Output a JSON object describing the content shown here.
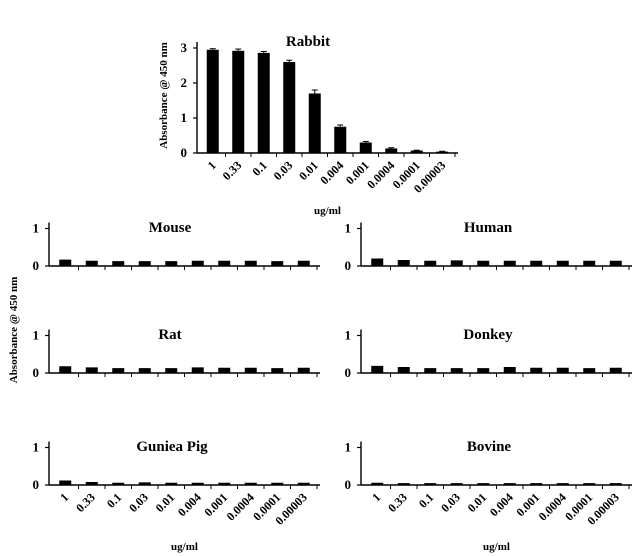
{
  "chart_data": [
    {
      "type": "bar",
      "title": "Rabbit",
      "ylabel": "Absorbance @ 450 nm",
      "xlabel": "ug/ml",
      "categories": [
        "1",
        "0.33",
        "0.1",
        "0.03",
        "0.01",
        "0.004",
        "0.001",
        "0.0004",
        "0.0001",
        "0.00003"
      ],
      "values": [
        2.95,
        2.92,
        2.86,
        2.6,
        1.7,
        0.75,
        0.3,
        0.13,
        0.07,
        0.04
      ],
      "errors": [
        0.03,
        0.05,
        0.04,
        0.05,
        0.1,
        0.05,
        0.03,
        0.02,
        0.01,
        0.01
      ],
      "ylim": [
        0,
        3
      ],
      "yticks": [
        "0",
        "1",
        "2",
        "3"
      ],
      "bar_color": "#000000"
    },
    {
      "type": "bar",
      "title": "Mouse",
      "categories": [
        "1",
        "0.33",
        "0.1",
        "0.03",
        "0.01",
        "0.004",
        "0.001",
        "0.0004",
        "0.0001",
        "0.00003"
      ],
      "values": [
        0.17,
        0.14,
        0.13,
        0.13,
        0.13,
        0.14,
        0.14,
        0.14,
        0.13,
        0.14
      ],
      "ylim": [
        0,
        1.2
      ],
      "yticks": [
        "0",
        "1"
      ],
      "bar_color": "#000000"
    },
    {
      "type": "bar",
      "title": "Human",
      "categories": [
        "1",
        "0.33",
        "0.1",
        "0.03",
        "0.01",
        "0.004",
        "0.001",
        "0.0004",
        "0.0001",
        "0.00003"
      ],
      "values": [
        0.2,
        0.16,
        0.14,
        0.15,
        0.14,
        0.14,
        0.14,
        0.14,
        0.14,
        0.14
      ],
      "ylim": [
        0,
        1.2
      ],
      "yticks": [
        "0",
        "1"
      ],
      "bar_color": "#000000"
    },
    {
      "type": "bar",
      "title": "Rat",
      "categories": [
        "1",
        "0.33",
        "0.1",
        "0.03",
        "0.01",
        "0.004",
        "0.001",
        "0.0004",
        "0.0001",
        "0.00003"
      ],
      "values": [
        0.18,
        0.15,
        0.13,
        0.13,
        0.13,
        0.15,
        0.14,
        0.14,
        0.13,
        0.14
      ],
      "ylim": [
        0,
        1.2
      ],
      "yticks": [
        "0",
        "1"
      ],
      "bar_color": "#000000"
    },
    {
      "type": "bar",
      "title": "Donkey",
      "categories": [
        "1",
        "0.33",
        "0.1",
        "0.03",
        "0.01",
        "0.004",
        "0.001",
        "0.0004",
        "0.0001",
        "0.00003"
      ],
      "values": [
        0.19,
        0.16,
        0.13,
        0.13,
        0.13,
        0.16,
        0.14,
        0.14,
        0.13,
        0.14
      ],
      "ylim": [
        0,
        1.2
      ],
      "yticks": [
        "0",
        "1"
      ],
      "bar_color": "#000000"
    },
    {
      "type": "bar",
      "title": "Guniea Pig",
      "xlabel": "ug/ml",
      "categories": [
        "1",
        "0.33",
        "0.1",
        "0.03",
        "0.01",
        "0.004",
        "0.001",
        "0.0004",
        "0.0001",
        "0.00003"
      ],
      "values": [
        0.12,
        0.08,
        0.06,
        0.07,
        0.06,
        0.06,
        0.06,
        0.06,
        0.06,
        0.06
      ],
      "ylim": [
        0,
        1.2
      ],
      "yticks": [
        "0",
        "1"
      ],
      "bar_color": "#000000"
    },
    {
      "type": "bar",
      "title": "Bovine",
      "xlabel": "ug/ml",
      "categories": [
        "1",
        "0.33",
        "0.1",
        "0.03",
        "0.01",
        "0.004",
        "0.001",
        "0.0004",
        "0.0001",
        "0.00003"
      ],
      "values": [
        0.06,
        0.05,
        0.05,
        0.05,
        0.05,
        0.05,
        0.05,
        0.05,
        0.05,
        0.05
      ],
      "ylim": [
        0,
        1.2
      ],
      "yticks": [
        "0",
        "1"
      ],
      "bar_color": "#000000"
    }
  ],
  "shared_ylabel": "Absorbance @ 450 nm"
}
